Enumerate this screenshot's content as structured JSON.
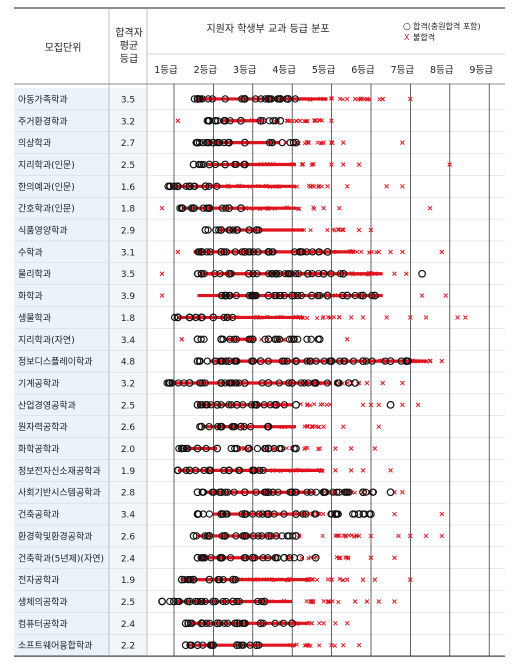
{
  "chart_data": {
    "type": "scatter",
    "title": "지원자 학생부 교과 등급 분포",
    "columns": {
      "dept": "모집단위",
      "avg_line1": "합격자",
      "avg_line2": "평균",
      "avg_line3": "등급"
    },
    "legend": {
      "pass_symbol": "○",
      "pass_label": "합격(충원합격 포함)",
      "fail_symbol": "X",
      "fail_label": "불합격",
      "pass_color": "#111111",
      "fail_color": "#e0141e"
    },
    "x_ticks": [
      "1등급",
      "2등급",
      "3등급",
      "4등급",
      "5등급",
      "6등급",
      "7등급",
      "8등급",
      "9등급"
    ],
    "xlim": [
      0.5,
      9.5
    ],
    "rows": [
      {
        "dept": "아동가족학과",
        "avg": "3.5",
        "pass": [
          1.8,
          3.0,
          3.6,
          3.9,
          4.1
        ],
        "pass_range": [
          1.7,
          4.3
        ],
        "dense_range": [
          1.8,
          5.1
        ],
        "fail": [
          5.6,
          5.8,
          6.1,
          6.5,
          7.2
        ],
        "fail_range": [
          4.3,
          6.6
        ]
      },
      {
        "dept": "주거환경학과",
        "avg": "3.2",
        "pass": [
          2.1,
          2.5,
          2.9,
          3.4,
          3.9
        ],
        "pass_range": [
          2.0,
          3.9
        ],
        "dense_range": [
          2.4,
          3.5
        ],
        "fail": [
          1.3,
          4.1,
          4.4,
          4.8,
          5.2
        ],
        "fail_range": [
          3.0,
          5.1
        ]
      },
      {
        "dept": "의상학과",
        "avg": "2.7",
        "pass": [
          1.8,
          2.2,
          2.6,
          3.0,
          4.3
        ],
        "pass_range": [
          1.7,
          4.3
        ],
        "dense_range": [
          2.0,
          3.9
        ],
        "fail": [
          4.6,
          5.0,
          5.2,
          5.5,
          7.0
        ],
        "fail_range": [
          3.9,
          5.4
        ]
      },
      {
        "dept": "지리학과(인문)",
        "avg": "2.5",
        "pass": [
          1.7,
          2.1,
          2.5,
          3.0
        ],
        "pass_range": [
          1.7,
          3.0
        ],
        "dense_range": [
          2.0,
          4.3
        ],
        "fail": [
          5.2,
          5.5,
          5.9,
          8.2
        ],
        "fail_range": [
          3.4,
          4.8
        ]
      },
      {
        "dept": "한의예과(인문)",
        "avg": "1.6",
        "pass": [
          1.1,
          1.3,
          1.6,
          2.0
        ],
        "pass_range": [
          1.0,
          2.5
        ],
        "dense_range": [
          1.1,
          4.3
        ],
        "fail": [
          5.1,
          5.6,
          6.6,
          7.0
        ],
        "fail_range": [
          2.0,
          5.0
        ]
      },
      {
        "dept": "간호학과(인문)",
        "avg": "1.8",
        "pass": [
          1.4,
          1.7,
          2.1,
          2.6,
          2.9
        ],
        "pass_range": [
          1.3,
          2.9
        ],
        "dense_range": [
          1.4,
          4.3
        ],
        "fail": [
          0.9,
          5.0,
          5.4,
          7.7
        ],
        "fail_range": [
          3.0,
          4.8
        ]
      },
      {
        "dept": "식품영양학과",
        "avg": "2.9",
        "pass": [
          2.0,
          2.4,
          2.8,
          3.3
        ],
        "pass_range": [
          2.0,
          3.6
        ],
        "dense_range": [
          2.3,
          4.5
        ],
        "fail": [
          5.5,
          5.9,
          6.2
        ],
        "fail_range": [
          4.4,
          5.5
        ]
      },
      {
        "dept": "수학과",
        "avg": "3.1",
        "pass": [
          1.9,
          2.4,
          3.0,
          3.6,
          4.4,
          5.1
        ],
        "pass_range": [
          1.8,
          5.2
        ],
        "dense_range": [
          1.7,
          5.8
        ],
        "fail": [
          1.3,
          6.4,
          6.7,
          7.0,
          8.0
        ],
        "fail_range": [
          4.4,
          6.4
        ]
      },
      {
        "dept": "물리학과",
        "avg": "3.5",
        "pass": [
          1.9,
          2.6,
          3.1,
          3.8,
          4.6,
          5.0,
          5.5,
          7.5
        ],
        "pass_range": [
          1.8,
          5.6
        ],
        "dense_range": [
          1.9,
          6.5
        ],
        "fail": [
          0.9,
          6.3,
          6.8,
          7.1
        ],
        "fail_range": [
          4.5,
          6.3
        ]
      },
      {
        "dept": "화학과",
        "avg": "3.9",
        "pass": [
          2.5,
          3.2,
          3.6,
          4.2,
          4.7,
          5.1,
          5.6,
          6.0,
          6.3
        ],
        "pass_range": [
          2.4,
          6.4
        ],
        "dense_range": [
          1.8,
          6.5
        ],
        "fail": [
          0.9,
          7.5,
          8.1
        ],
        "fail_range": [
          5.0,
          6.6
        ]
      },
      {
        "dept": "생물학과",
        "avg": "1.8",
        "pass": [
          1.3,
          1.6,
          1.9,
          2.2
        ],
        "pass_range": [
          1.2,
          2.7
        ],
        "dense_range": [
          1.3,
          4.5
        ],
        "fail": [
          5.4,
          5.7,
          6.0,
          6.6,
          7.2,
          7.6,
          8.4,
          8.6
        ],
        "fail_range": [
          2.5,
          5.4
        ]
      },
      {
        "dept": "지리학과(자연)",
        "avg": "3.4",
        "pass": [
          1.8,
          2.4,
          3.2,
          3.6,
          4.9
        ],
        "pass_range": [
          1.8,
          4.9
        ],
        "dense_range": [
          2.5,
          3.3
        ],
        "fail": [
          1.4,
          4.2,
          5.6
        ],
        "fail_range": [
          3.4,
          4.2
        ]
      },
      {
        "dept": "정보디스플레이학과",
        "avg": "4.8",
        "pass": [
          1.8,
          2.6,
          3.4,
          4.3,
          5.2,
          6.0,
          6.7,
          7.1
        ],
        "pass_range": [
          1.7,
          7.2
        ],
        "dense_range": [
          2.1,
          7.6
        ],
        "fail": [
          7.3,
          7.7,
          8.0
        ],
        "fail_range": [
          6.4,
          7.8
        ]
      },
      {
        "dept": "기계공학과",
        "avg": "3.2",
        "pass": [
          1.1,
          1.6,
          2.4,
          3.0,
          3.6,
          4.2,
          4.8,
          5.8
        ],
        "pass_range": [
          1.0,
          5.9
        ],
        "dense_range": [
          1.2,
          5.2
        ],
        "fail": [
          6.1,
          6.5,
          7.0
        ],
        "fail_range": [
          4.5,
          6.3
        ]
      },
      {
        "dept": "산업경영공학과",
        "avg": "2.5",
        "pass": [
          1.8,
          2.3,
          2.8,
          3.3,
          3.8,
          4.3,
          6.7
        ],
        "pass_range": [
          1.8,
          4.2
        ],
        "dense_range": [
          1.8,
          4.2
        ],
        "fail": [
          6.0,
          6.2,
          6.4,
          7.0,
          7.4
        ],
        "fail_range": [
          4.4,
          5.4
        ]
      },
      {
        "dept": "원자력공학과",
        "avg": "2.6",
        "pass": [
          1.9,
          2.4,
          2.9,
          3.6
        ],
        "pass_range": [
          1.8,
          3.6
        ],
        "dense_range": [
          1.9,
          4.3
        ],
        "fail": [
          4.7,
          5.0,
          5.5,
          6.4
        ],
        "fail_range": [
          3.5,
          4.9
        ]
      },
      {
        "dept": "화학공학과",
        "avg": "2.0",
        "pass": [
          1.4,
          1.8,
          2.3,
          3.1,
          3.6,
          4.3
        ],
        "pass_range": [
          1.3,
          4.3
        ],
        "dense_range": [
          1.5,
          2.3
        ],
        "fail": [
          4.9,
          5.3,
          5.7,
          6.3
        ],
        "fail_range": [
          2.8,
          5.0
        ]
      },
      {
        "dept": "정보전자신소재공학과",
        "avg": "1.9",
        "pass": [
          1.3,
          1.6,
          2.1,
          2.6,
          3.2
        ],
        "pass_range": [
          1.3,
          3.5
        ],
        "dense_range": [
          1.3,
          5.0
        ],
        "fail": [
          5.3,
          5.7,
          6.0,
          6.7
        ],
        "fail_range": [
          3.2,
          5.1
        ]
      },
      {
        "dept": "사회기반시스템공학과",
        "avg": "2.8",
        "pass": [
          1.8,
          2.4,
          3.0,
          3.6,
          4.2,
          5.0,
          6.0,
          6.7
        ],
        "pass_range": [
          1.8,
          6.7
        ],
        "dense_range": [
          2.0,
          4.8
        ],
        "fail": [
          5.2,
          5.6,
          6.0,
          6.8,
          7.0
        ],
        "fail_range": [
          4.8,
          6.2
        ]
      },
      {
        "dept": "건축공학과",
        "avg": "3.4",
        "pass": [
          1.8,
          2.4,
          3.0,
          3.6,
          4.3,
          5.3,
          5.9,
          6.2
        ],
        "pass_range": [
          1.8,
          6.2
        ],
        "dense_range": [
          2.2,
          4.6
        ],
        "fail": [
          4.5,
          4.9,
          6.8,
          8.0
        ],
        "fail_range": [
          4.1,
          5.0
        ]
      },
      {
        "dept": "환경학및환경공학과",
        "avg": "2.6",
        "pass": [
          1.7,
          2.1,
          2.5,
          3.0,
          3.6,
          4.3
        ],
        "pass_range": [
          1.7,
          4.3
        ],
        "dense_range": [
          1.8,
          3.9
        ],
        "fail": [
          5.4,
          5.9,
          6.2,
          6.9,
          7.2,
          7.6,
          8.0
        ],
        "fail_range": [
          4.3,
          5.9
        ]
      },
      {
        "dept": "건축학과(5년제)(자연)",
        "avg": "2.4",
        "pass": [
          1.8,
          2.4,
          3.2,
          4.0,
          4.8
        ],
        "pass_range": [
          1.8,
          4.8
        ],
        "dense_range": [
          1.9,
          3.8
        ],
        "fail": [
          5.4,
          6.2,
          6.8
        ],
        "fail_range": [
          4.0,
          5.8
        ]
      },
      {
        "dept": "전자공학과",
        "avg": "1.9",
        "pass": [
          1.4,
          1.7,
          2.1,
          2.7
        ],
        "pass_range": [
          1.4,
          2.9
        ],
        "dense_range": [
          1.4,
          4.6
        ],
        "fail": [
          4.7,
          5.2,
          5.6,
          6.0,
          6.3,
          7.2
        ],
        "fail_range": [
          2.8,
          5.7
        ]
      },
      {
        "dept": "생체의공학과",
        "avg": "2.5",
        "pass": [
          0.9,
          1.2,
          1.6,
          2.2,
          2.7,
          3.5
        ],
        "pass_range": [
          0.9,
          3.5
        ],
        "dense_range": [
          1.3,
          4.2
        ],
        "fail": [
          5.8,
          6.1,
          6.4,
          6.8
        ],
        "fail_range": [
          3.3,
          5.4
        ]
      },
      {
        "dept": "컴퓨터공학과",
        "avg": "2.4",
        "pass": [
          1.5,
          1.9,
          2.3,
          2.8,
          3.4,
          4.2
        ],
        "pass_range": [
          1.5,
          4.1
        ],
        "dense_range": [
          1.6,
          4.6
        ],
        "fail": [
          4.7,
          5.0,
          5.3,
          5.6
        ],
        "fail_range": [
          3.9,
          5.0
        ]
      },
      {
        "dept": "소프트웨어융합학과",
        "avg": "2.2",
        "pass": [
          1.5,
          1.8,
          2.2,
          2.8,
          3.3
        ],
        "pass_range": [
          1.5,
          3.4
        ],
        "dense_range": [
          1.6,
          4.3
        ],
        "fail": [
          5.2,
          5.5,
          5.9
        ],
        "fail_range": [
          4.1,
          5.3
        ]
      }
    ]
  }
}
